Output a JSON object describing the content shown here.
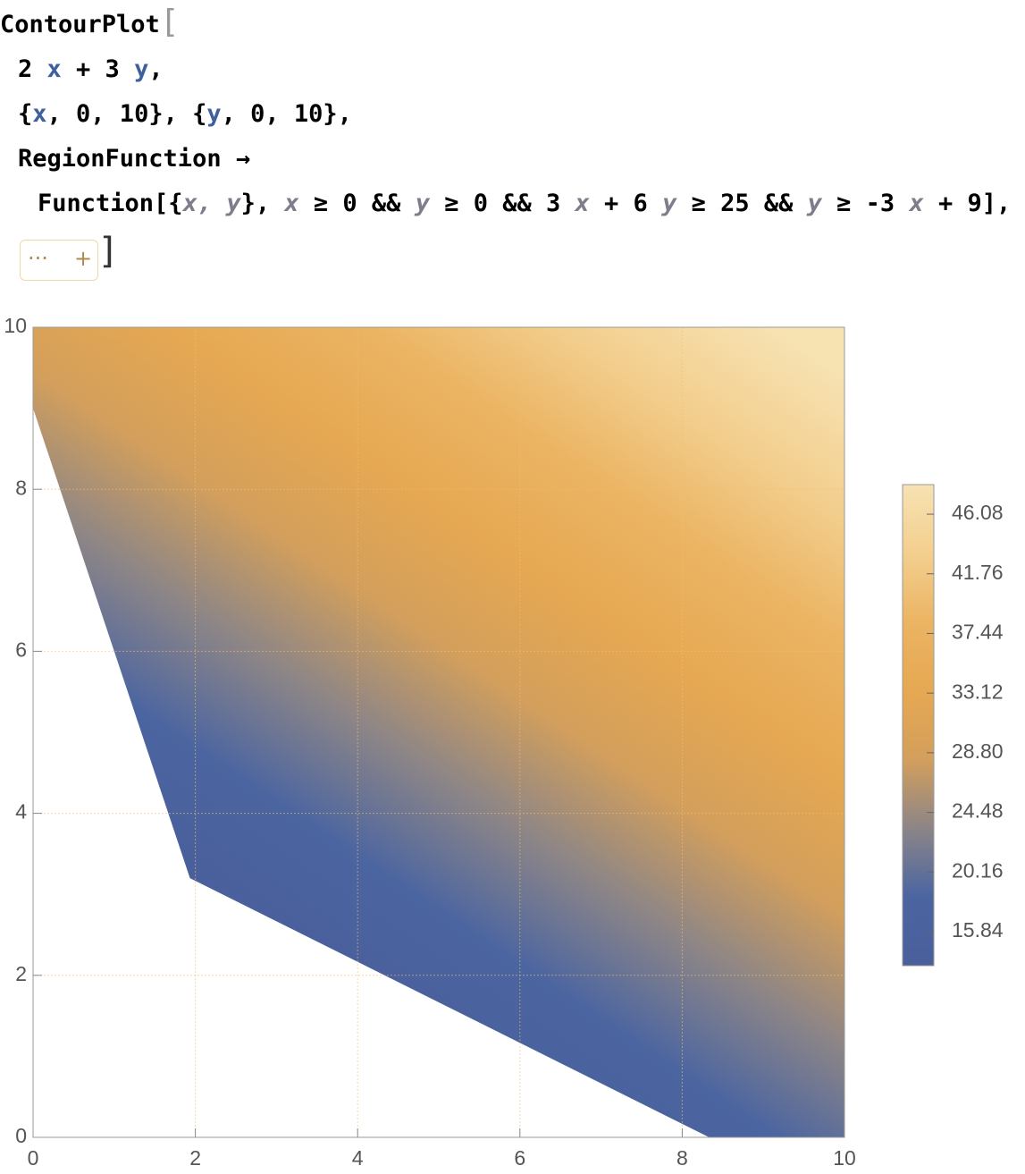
{
  "code": {
    "lines": [
      [
        {
          "text": "ContourPlot",
          "color": "#000000"
        },
        {
          "text": "[",
          "color": "#999999"
        }
      ],
      [
        {
          "text": "2 ",
          "color": "#000000"
        },
        {
          "text": "x",
          "color": "#3f5f9e"
        },
        {
          "text": " + 3 ",
          "color": "#000000"
        },
        {
          "text": "y",
          "color": "#3f5f9e"
        },
        {
          "text": ",",
          "color": "#000000"
        }
      ],
      [
        {
          "text": "{",
          "color": "#000000"
        },
        {
          "text": "x",
          "color": "#3f5f9e"
        },
        {
          "text": ", 0, 10}, {",
          "color": "#000000"
        },
        {
          "text": "y",
          "color": "#3f5f9e"
        },
        {
          "text": ", 0, 10},",
          "color": "#000000"
        }
      ],
      [
        {
          "text": "RegionFunction →",
          "color": "#000000"
        }
      ],
      [
        {
          "text": "Function[{",
          "color": "#000000"
        },
        {
          "text": "x, y",
          "color": "#7d7d8c"
        },
        {
          "text": "}, ",
          "color": "#000000"
        },
        {
          "text": "x",
          "color": "#7d7d8c"
        },
        {
          "text": " ≥ 0 && ",
          "color": "#000000"
        },
        {
          "text": "y",
          "color": "#7d7d8c"
        },
        {
          "text": " ≥ 0 && 3 ",
          "color": "#000000"
        },
        {
          "text": "x",
          "color": "#7d7d8c"
        },
        {
          "text": " + 6 ",
          "color": "#000000"
        },
        {
          "text": "y",
          "color": "#7d7d8c"
        },
        {
          "text": " ≥ 25 && ",
          "color": "#000000"
        },
        {
          "text": "y",
          "color": "#7d7d8c"
        },
        {
          "text": " ≥ -3 ",
          "color": "#000000"
        },
        {
          "text": "x",
          "color": "#7d7d8c"
        },
        {
          "text": " + 9],",
          "color": "#000000"
        }
      ]
    ],
    "elided": [
      "···",
      "+"
    ],
    "close": "]"
  },
  "chart_data": {
    "type": "density",
    "xlim": [
      0,
      10
    ],
    "ylim": [
      0,
      10
    ],
    "xticks": [
      0,
      2,
      4,
      6,
      8,
      10
    ],
    "yticks": [
      0,
      2,
      4,
      6,
      8,
      10
    ],
    "grid": true,
    "colors": [
      "#4a5f9b",
      "#4b65a1",
      "#8c8587",
      "#d39f5c",
      "#e6a852",
      "#ebb463",
      "#f3cf8f",
      "#f7e2b2"
    ],
    "legend": {
      "lim": [
        13.38,
        48.22
      ],
      "ticks": [
        15.84,
        20.16,
        24.48,
        {
          "value": 28.8,
          "label": "28.80"
        },
        33.12,
        37.44,
        41.76,
        46.08
      ]
    }
  }
}
